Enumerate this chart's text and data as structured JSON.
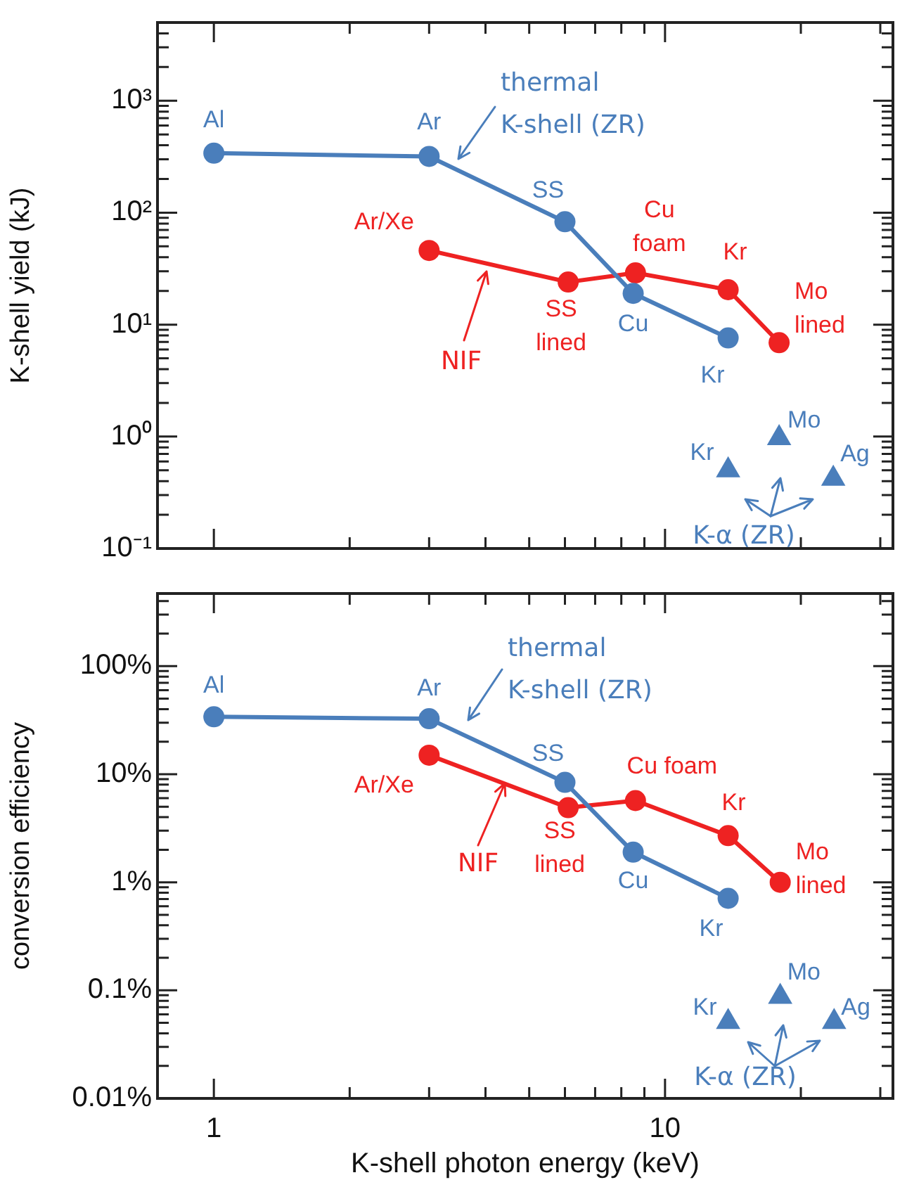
{
  "chart_data": [
    {
      "type": "line",
      "ylabel": "K-shell yield (kJ)",
      "log": "xy",
      "tick_labels": "y",
      "xlim": [
        0.75,
        32
      ],
      "xticks": [
        {
          "value": 1,
          "label": null
        },
        {
          "value": 2,
          "label": null
        },
        {
          "value": 3,
          "label": null
        },
        {
          "value": 4,
          "label": null
        },
        {
          "value": 5,
          "label": null
        },
        {
          "value": 6,
          "label": null
        },
        {
          "value": 7,
          "label": null
        },
        {
          "value": 8,
          "label": null
        },
        {
          "value": 9,
          "label": null
        },
        {
          "value": 10,
          "label": null
        },
        {
          "value": 20,
          "label": null
        },
        {
          "value": 30,
          "label": null
        }
      ],
      "ylim": [
        0.1,
        5000
      ],
      "yticks": [
        {
          "value": 0.1,
          "label": "10⁻¹"
        },
        {
          "value": 0.2,
          "label": null
        },
        {
          "value": 0.3,
          "label": null
        },
        {
          "value": 0.4,
          "label": null
        },
        {
          "value": 0.5,
          "label": null
        },
        {
          "value": 0.6,
          "label": null
        },
        {
          "value": 0.7,
          "label": null
        },
        {
          "value": 0.8,
          "label": null
        },
        {
          "value": 0.9,
          "label": null
        },
        {
          "value": 1,
          "label": "10⁰"
        },
        {
          "value": 2,
          "label": null
        },
        {
          "value": 3,
          "label": null
        },
        {
          "value": 4,
          "label": null
        },
        {
          "value": 5,
          "label": null
        },
        {
          "value": 6,
          "label": null
        },
        {
          "value": 7,
          "label": null
        },
        {
          "value": 8,
          "label": null
        },
        {
          "value": 9,
          "label": null
        },
        {
          "value": 10,
          "label": "10¹"
        },
        {
          "value": 20,
          "label": null
        },
        {
          "value": 30,
          "label": null
        },
        {
          "value": 40,
          "label": null
        },
        {
          "value": 50,
          "label": null
        },
        {
          "value": 60,
          "label": null
        },
        {
          "value": 70,
          "label": null
        },
        {
          "value": 80,
          "label": null
        },
        {
          "value": 90,
          "label": null
        },
        {
          "value": 100,
          "label": "10²"
        },
        {
          "value": 200,
          "label": null
        },
        {
          "value": 300,
          "label": null
        },
        {
          "value": 400,
          "label": null
        },
        {
          "value": 500,
          "label": null
        },
        {
          "value": 600,
          "label": null
        },
        {
          "value": 700,
          "label": null
        },
        {
          "value": 800,
          "label": null
        },
        {
          "value": 900,
          "label": null
        },
        {
          "value": 1000,
          "label": "10³"
        },
        {
          "value": 2000,
          "label": null
        },
        {
          "value": 3000,
          "label": null
        },
        {
          "value": 4000,
          "label": null
        }
      ],
      "series": [
        {
          "name": "thermal K-shell (ZR)",
          "marker": "circle",
          "color": "#4a7ebb",
          "x": [
            1,
            3,
            6,
            8.5,
            13.8
          ],
          "values": [
            340,
            318,
            83,
            19,
            7.6
          ],
          "value_labels": [
            "Al",
            "Ar",
            "SS",
            "Cu",
            "Kr"
          ]
        },
        {
          "name": "NIF",
          "marker": "circle",
          "color": "#ee2222",
          "x": [
            3,
            6.1,
            8.6,
            13.8,
            17.9
          ],
          "values": [
            46,
            24,
            29,
            20.5,
            6.9
          ],
          "value_labels": [
            "Ar/Xe",
            "SS lined",
            "Cu foam",
            "Kr",
            "Mo lined"
          ]
        },
        {
          "name": "K-α (ZR)",
          "type": "scatter",
          "marker": "triangle",
          "color": "#4a7ebb",
          "x": [
            13.8,
            17.9,
            23.6
          ],
          "values": [
            0.5,
            0.97,
            0.42
          ],
          "value_labels": [
            "Kr",
            "Mo",
            "Ag"
          ]
        }
      ]
    },
    {
      "type": "line",
      "xlabel": "K-shell photon energy (keV)",
      "ylabel": "conversion efficiency",
      "log": "xy",
      "xlim": [
        0.75,
        32
      ],
      "xticks": [
        {
          "value": 1,
          "label": "1"
        },
        {
          "value": 2,
          "label": null
        },
        {
          "value": 3,
          "label": null
        },
        {
          "value": 4,
          "label": null
        },
        {
          "value": 5,
          "label": null
        },
        {
          "value": 6,
          "label": null
        },
        {
          "value": 7,
          "label": null
        },
        {
          "value": 8,
          "label": null
        },
        {
          "value": 9,
          "label": null
        },
        {
          "value": 10,
          "label": "10"
        },
        {
          "value": 20,
          "label": null
        },
        {
          "value": 30,
          "label": null
        }
      ],
      "ylim": [
        0.01,
        470
      ],
      "yticks": [
        {
          "value": 0.01,
          "label": "0.01%"
        },
        {
          "value": 0.02,
          "label": null
        },
        {
          "value": 0.03,
          "label": null
        },
        {
          "value": 0.04,
          "label": null
        },
        {
          "value": 0.05,
          "label": null
        },
        {
          "value": 0.06,
          "label": null
        },
        {
          "value": 0.07,
          "label": null
        },
        {
          "value": 0.08,
          "label": null
        },
        {
          "value": 0.09,
          "label": null
        },
        {
          "value": 0.1,
          "label": "0.1%"
        },
        {
          "value": 0.2,
          "label": null
        },
        {
          "value": 0.3,
          "label": null
        },
        {
          "value": 0.4,
          "label": null
        },
        {
          "value": 0.5,
          "label": null
        },
        {
          "value": 0.6,
          "label": null
        },
        {
          "value": 0.7,
          "label": null
        },
        {
          "value": 0.8,
          "label": null
        },
        {
          "value": 0.9,
          "label": null
        },
        {
          "value": 1,
          "label": "1%"
        },
        {
          "value": 2,
          "label": null
        },
        {
          "value": 3,
          "label": null
        },
        {
          "value": 4,
          "label": null
        },
        {
          "value": 5,
          "label": null
        },
        {
          "value": 6,
          "label": null
        },
        {
          "value": 7,
          "label": null
        },
        {
          "value": 8,
          "label": null
        },
        {
          "value": 9,
          "label": null
        },
        {
          "value": 10,
          "label": "10%"
        },
        {
          "value": 20,
          "label": null
        },
        {
          "value": 30,
          "label": null
        },
        {
          "value": 40,
          "label": null
        },
        {
          "value": 50,
          "label": null
        },
        {
          "value": 60,
          "label": null
        },
        {
          "value": 70,
          "label": null
        },
        {
          "value": 80,
          "label": null
        },
        {
          "value": 90,
          "label": null
        },
        {
          "value": 100,
          "label": "100%"
        },
        {
          "value": 200,
          "label": null
        },
        {
          "value": 300,
          "label": null
        },
        {
          "value": 400,
          "label": null
        }
      ],
      "series": [
        {
          "name": "thermal K-shell (ZR)",
          "marker": "circle",
          "color": "#4a7ebb",
          "x": [
            1,
            3,
            6,
            8.5,
            13.8
          ],
          "values": [
            34,
            32.6,
            8.4,
            1.9,
            0.71
          ],
          "value_labels": [
            "Al",
            "Ar",
            "SS",
            "Cu",
            "Kr"
          ]
        },
        {
          "name": "NIF",
          "marker": "circle",
          "color": "#ee2222",
          "x": [
            3,
            6.1,
            8.6,
            13.8,
            18
          ],
          "values": [
            15,
            4.9,
            5.7,
            2.7,
            1.0
          ],
          "value_labels": [
            "Ar/Xe",
            "SS lined",
            "Cu foam",
            "Kr",
            "Mo lined"
          ]
        },
        {
          "name": "K-α (ZR)",
          "type": "scatter",
          "marker": "triangle",
          "color": "#4a7ebb",
          "x": [
            13.8,
            18,
            23.7
          ],
          "values": [
            0.051,
            0.087,
            0.051
          ],
          "value_labels": [
            "Kr",
            "Mo",
            "Ag"
          ]
        }
      ]
    }
  ]
}
